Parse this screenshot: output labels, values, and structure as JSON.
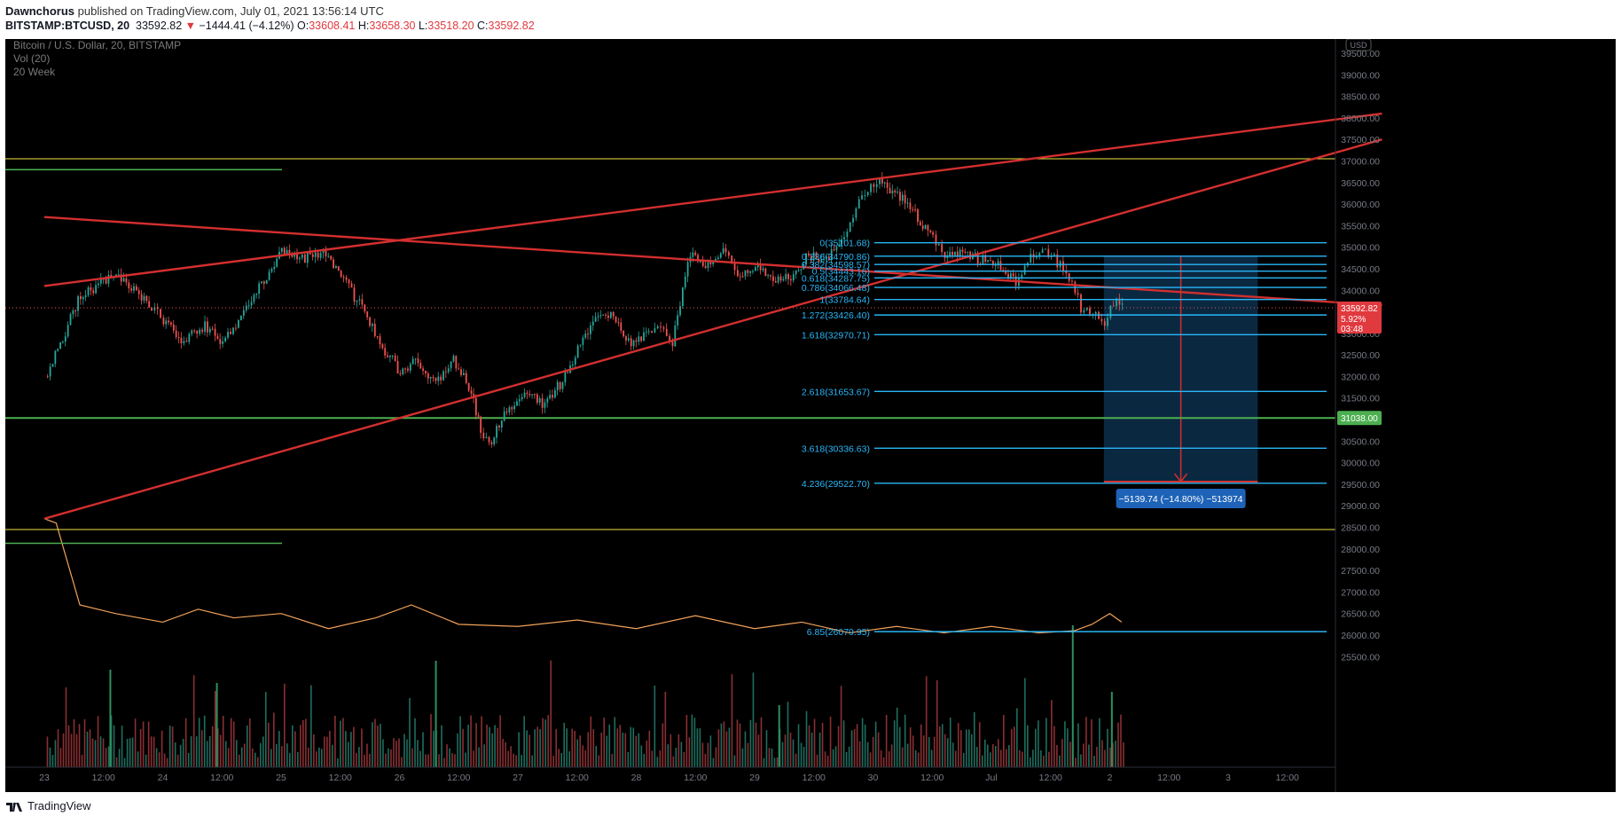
{
  "header": {
    "author": "Dawnchorus",
    "published_text": "published on TradingView.com, July 01, 2021 13:56:14 UTC",
    "symbol": "BITSTAMP:BTCUSD, 20",
    "last": "33592.82",
    "change": "−1444.41 (−4.12%)",
    "o_label": "O:",
    "o": "33608.41",
    "h_label": "H:",
    "h": "33658.30",
    "l_label": "L:",
    "l": "33518.20",
    "c_label": "C:",
    "c": "33592.82"
  },
  "legend": {
    "title": "Bitcoin / U.S. Dollar, 20, BITSTAMP",
    "vol": "Vol (20)",
    "week": "20 Week"
  },
  "footer": {
    "brand": "TradingView"
  },
  "colors": {
    "background": "#000000",
    "trendline": "#d32f2f",
    "fib": "#29b6f6",
    "support": "#4caf50",
    "yellow": "#f0e442",
    "up_candle": "#26a69a",
    "down_candle": "#ef5350",
    "vol_ma": "#f3a35a",
    "measure_box": "#0c2a44"
  },
  "chart_data": {
    "type": "candlestick",
    "symbol": "BITSTAMP:BTCUSD",
    "interval": "20",
    "currency_badge": "USD",
    "ylim": [
      25500,
      40000
    ],
    "y_ticks": [
      "25500.00",
      "26000.00",
      "26500.00",
      "27000.00",
      "27500.00",
      "28000.00",
      "28500.00",
      "29000.00",
      "29500.00",
      "30000.00",
      "30500.00",
      "31000.00",
      "31500.00",
      "32000.00",
      "32500.00",
      "33000.00",
      "33500.00",
      "34000.00",
      "34500.00",
      "35000.00",
      "35500.00",
      "36000.00",
      "36500.00",
      "37000.00",
      "37500.00",
      "38000.00",
      "38500.00",
      "39000.00",
      "39500.00"
    ],
    "x_ticks": [
      "23",
      "12:00",
      "24",
      "12:00",
      "25",
      "12:00",
      "26",
      "12:00",
      "27",
      "12:00",
      "28",
      "12:00",
      "29",
      "12:00",
      "30",
      "12:00",
      "Jul",
      "12:00",
      "2",
      "12:00",
      "3",
      "12:00"
    ],
    "price_path": [
      [
        0,
        32000
      ],
      [
        0.15,
        32900
      ],
      [
        0.3,
        33900
      ],
      [
        0.45,
        34100
      ],
      [
        0.6,
        34400
      ],
      [
        0.75,
        34000
      ],
      [
        0.9,
        33600
      ],
      [
        1.0,
        33300
      ],
      [
        1.15,
        32800
      ],
      [
        1.35,
        33200
      ],
      [
        1.5,
        32800
      ],
      [
        1.7,
        33600
      ],
      [
        1.85,
        34200
      ],
      [
        2.0,
        34900
      ],
      [
        2.15,
        34700
      ],
      [
        2.35,
        34900
      ],
      [
        2.5,
        34300
      ],
      [
        2.7,
        33500
      ],
      [
        2.85,
        32700
      ],
      [
        3.0,
        32100
      ],
      [
        3.15,
        32400
      ],
      [
        3.3,
        31800
      ],
      [
        3.45,
        32400
      ],
      [
        3.6,
        31700
      ],
      [
        3.68,
        30700
      ],
      [
        3.75,
        30400
      ],
      [
        3.9,
        31200
      ],
      [
        4.05,
        31700
      ],
      [
        4.2,
        31400
      ],
      [
        4.35,
        31800
      ],
      [
        4.5,
        32600
      ],
      [
        4.65,
        33400
      ],
      [
        4.8,
        33500
      ],
      [
        4.95,
        32700
      ],
      [
        5.1,
        33100
      ],
      [
        5.2,
        33100
      ],
      [
        5.3,
        32800
      ],
      [
        5.45,
        34900
      ],
      [
        5.6,
        34600
      ],
      [
        5.75,
        34900
      ],
      [
        5.85,
        34300
      ],
      [
        6.0,
        34600
      ],
      [
        6.15,
        34300
      ],
      [
        6.3,
        34300
      ],
      [
        6.45,
        34800
      ],
      [
        6.6,
        34700
      ],
      [
        6.75,
        35300
      ],
      [
        6.85,
        35900
      ],
      [
        6.95,
        36350
      ],
      [
        7.05,
        36500
      ],
      [
        7.2,
        36200
      ],
      [
        7.35,
        35800
      ],
      [
        7.5,
        35200
      ],
      [
        7.6,
        34800
      ],
      [
        7.75,
        34900
      ],
      [
        7.9,
        34700
      ],
      [
        8.05,
        34600
      ],
      [
        8.2,
        34200
      ],
      [
        8.3,
        34750
      ],
      [
        8.4,
        34950
      ],
      [
        8.5,
        34800
      ],
      [
        8.6,
        34500
      ],
      [
        8.7,
        34000
      ],
      [
        8.75,
        33600
      ],
      [
        8.85,
        33400
      ],
      [
        8.95,
        33300
      ],
      [
        9.0,
        33600
      ],
      [
        9.05,
        33800
      ],
      [
        9.1,
        33592.82
      ]
    ],
    "last_price": "33592.82",
    "last_change_pct": "5.92%",
    "countdown": "03:48",
    "support_level": {
      "label": "31038.00",
      "value": 31038
    },
    "yellow_lines": [
      37050,
      28450
    ],
    "fib_levels": [
      {
        "label": "0(35101.68)",
        "value": 35101.68
      },
      {
        "label": "0.236(34790.86)",
        "value": 34790.86
      },
      {
        "label": "0.382(34598.57)",
        "value": 34598.57
      },
      {
        "label": "0.5(34443.16)",
        "value": 34443.16
      },
      {
        "label": "0.618(34287.75)",
        "value": 34287.75
      },
      {
        "label": "0.786(34066.48)",
        "value": 34066.48
      },
      {
        "label": "1(33784.64)",
        "value": 33784.64
      },
      {
        "label": "1.272(33426.40)",
        "value": 33426.4
      },
      {
        "label": "1.618(32970.71)",
        "value": 32970.71
      },
      {
        "label": "2.618(31653.67)",
        "value": 31653.67
      },
      {
        "label": "3.618(30336.63)",
        "value": 30336.63
      },
      {
        "label": "4.236(29522.70)",
        "value": 29522.7
      },
      {
        "label": "6.85(26079.95)",
        "value": 26079.95
      }
    ],
    "trendlines": [
      {
        "from": [
          0,
          34100
        ],
        "to": [
          11.3,
          38100
        ]
      },
      {
        "from": [
          0,
          28700
        ],
        "to": [
          11.3,
          37500
        ]
      },
      {
        "from": [
          0,
          35700
        ],
        "to": [
          11.3,
          33650
        ]
      }
    ],
    "measure": {
      "label": "−5139.74 (−14.80%) −513974",
      "from_x": 8.95,
      "to_x": 10.25,
      "top": 34790.86,
      "bottom": 29560
    },
    "volume_ma_path": [
      [
        0,
        28700
      ],
      [
        0.1,
        28600
      ],
      [
        0.3,
        26700
      ],
      [
        0.6,
        26500
      ],
      [
        1.0,
        26300
      ],
      [
        1.3,
        26600
      ],
      [
        1.6,
        26400
      ],
      [
        2.0,
        26500
      ],
      [
        2.4,
        26150
      ],
      [
        2.8,
        26400
      ],
      [
        3.1,
        26700
      ],
      [
        3.5,
        26250
      ],
      [
        4.0,
        26200
      ],
      [
        4.5,
        26350
      ],
      [
        5.0,
        26150
      ],
      [
        5.5,
        26450
      ],
      [
        6.0,
        26150
      ],
      [
        6.4,
        26300
      ],
      [
        6.8,
        26050
      ],
      [
        7.2,
        26200
      ],
      [
        7.6,
        26050
      ],
      [
        8.0,
        26200
      ],
      [
        8.4,
        26050
      ],
      [
        8.7,
        26100
      ],
      [
        8.85,
        26250
      ],
      [
        9.0,
        26500
      ],
      [
        9.1,
        26300
      ]
    ]
  }
}
